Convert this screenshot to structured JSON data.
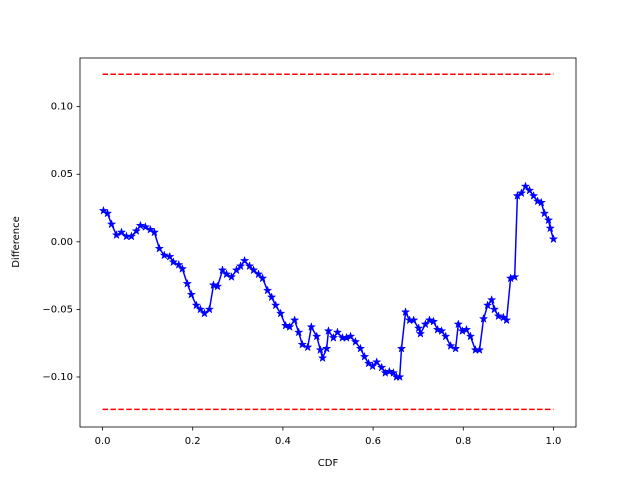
{
  "chart_data": {
    "type": "line",
    "xlabel": "CDF",
    "ylabel": "Difference",
    "xlim": [
      -0.05,
      1.05
    ],
    "ylim": [
      -0.137,
      0.136
    ],
    "xticks": [
      {
        "value": 0,
        "label": "0.0"
      },
      0.2,
      0.4,
      0.6,
      0.8,
      {
        "value": 1,
        "label": "1.0"
      }
    ],
    "yticks": [
      {
        "value": -0.1,
        "label": "−0.10"
      },
      {
        "value": -0.05,
        "label": "−0.05"
      },
      {
        "value": 0,
        "label": "0.00"
      },
      {
        "value": 0.05,
        "label": "0.05"
      },
      {
        "value": 0.1,
        "label": "0.10"
      }
    ],
    "series": [
      {
        "color": "#0000ff",
        "linestyle": "solid",
        "marker": "star",
        "x": [
          0.002,
          0.011,
          0.02,
          0.031,
          0.042,
          0.053,
          0.064,
          0.075,
          0.084,
          0.095,
          0.106,
          0.115,
          0.126,
          0.137,
          0.149,
          0.157,
          0.169,
          0.177,
          0.188,
          0.197,
          0.208,
          0.217,
          0.226,
          0.237,
          0.246,
          0.255,
          0.266,
          0.275,
          0.286,
          0.297,
          0.306,
          0.315,
          0.326,
          0.335,
          0.346,
          0.355,
          0.366,
          0.375,
          0.384,
          0.395,
          0.406,
          0.415,
          0.426,
          0.435,
          0.443,
          0.455,
          0.463,
          0.475,
          0.483,
          0.488,
          0.497,
          0.501,
          0.512,
          0.521,
          0.532,
          0.541,
          0.55,
          0.561,
          0.572,
          0.581,
          0.59,
          0.599,
          0.608,
          0.619,
          0.627,
          0.636,
          0.645,
          0.652,
          0.659,
          0.663,
          0.672,
          0.681,
          0.69,
          0.701,
          0.705,
          0.716,
          0.725,
          0.734,
          0.743,
          0.752,
          0.761,
          0.772,
          0.783,
          0.789,
          0.798,
          0.807,
          0.816,
          0.827,
          0.836,
          0.845,
          0.854,
          0.863,
          0.869,
          0.878,
          0.889,
          0.896,
          0.905,
          0.914,
          0.92,
          0.929,
          0.938,
          0.947,
          0.956,
          0.965,
          0.973,
          0.98,
          0.989,
          0.993,
          1.0
        ],
        "values": [
          0.023,
          0.021,
          0.013,
          0.005,
          0.007,
          0.004,
          0.004,
          0.008,
          0.012,
          0.011,
          0.009,
          0.007,
          -0.005,
          -0.01,
          -0.011,
          -0.015,
          -0.017,
          -0.02,
          -0.031,
          -0.039,
          -0.047,
          -0.05,
          -0.053,
          -0.05,
          -0.032,
          -0.033,
          -0.021,
          -0.024,
          -0.026,
          -0.021,
          -0.018,
          -0.014,
          -0.018,
          -0.021,
          -0.024,
          -0.027,
          -0.036,
          -0.041,
          -0.047,
          -0.053,
          -0.062,
          -0.063,
          -0.058,
          -0.067,
          -0.076,
          -0.078,
          -0.063,
          -0.07,
          -0.08,
          -0.086,
          -0.079,
          -0.066,
          -0.071,
          -0.067,
          -0.071,
          -0.071,
          -0.07,
          -0.074,
          -0.079,
          -0.085,
          -0.09,
          -0.092,
          -0.089,
          -0.093,
          -0.097,
          -0.096,
          -0.097,
          -0.1,
          -0.1,
          -0.079,
          -0.052,
          -0.058,
          -0.058,
          -0.064,
          -0.068,
          -0.061,
          -0.058,
          -0.059,
          -0.065,
          -0.066,
          -0.07,
          -0.077,
          -0.079,
          -0.061,
          -0.066,
          -0.065,
          -0.07,
          -0.08,
          -0.08,
          -0.057,
          -0.047,
          -0.043,
          -0.05,
          -0.055,
          -0.056,
          -0.058,
          -0.027,
          -0.026,
          0.034,
          0.036,
          0.041,
          0.038,
          0.034,
          0.03,
          0.029,
          0.021,
          0.016,
          0.01,
          0.002
        ]
      },
      {
        "color": "#ff0000",
        "linestyle": "dashed",
        "x": [
          0,
          1
        ],
        "values": [
          0.124,
          0.124
        ]
      },
      {
        "color": "#ff0000",
        "linestyle": "dashed",
        "x": [
          0,
          1
        ],
        "values": [
          -0.124,
          -0.124
        ]
      }
    ]
  }
}
